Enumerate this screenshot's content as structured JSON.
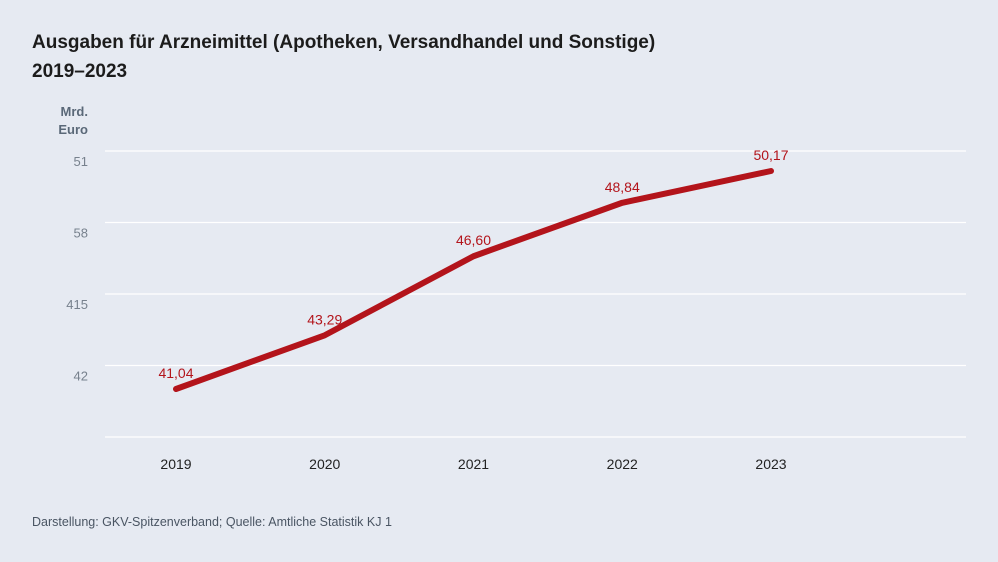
{
  "chart_data": {
    "type": "line",
    "title_line1": "Ausgaben für Arzneimittel (Apotheken, Versandhandel und Sonstige)",
    "title_line2": "2019–2023",
    "ylabel_line1": "Mrd.",
    "ylabel_line2": "Euro",
    "y_tick_labels": [
      "51",
      "58",
      "415",
      "42"
    ],
    "x": [
      "2019",
      "2020",
      "2021",
      "2022",
      "2023"
    ],
    "values": [
      41.04,
      43.29,
      46.6,
      48.84,
      50.17
    ],
    "value_labels": [
      "41,04",
      "43,29",
      "46,60",
      "48,84",
      "50,17"
    ],
    "ylim": [
      39.5,
      51.3
    ],
    "series_color": "#b3141b",
    "grid": true
  },
  "footer": "Darstellung: GKV-Spitzenverband; Quelle: Amtliche Statistik KJ 1"
}
